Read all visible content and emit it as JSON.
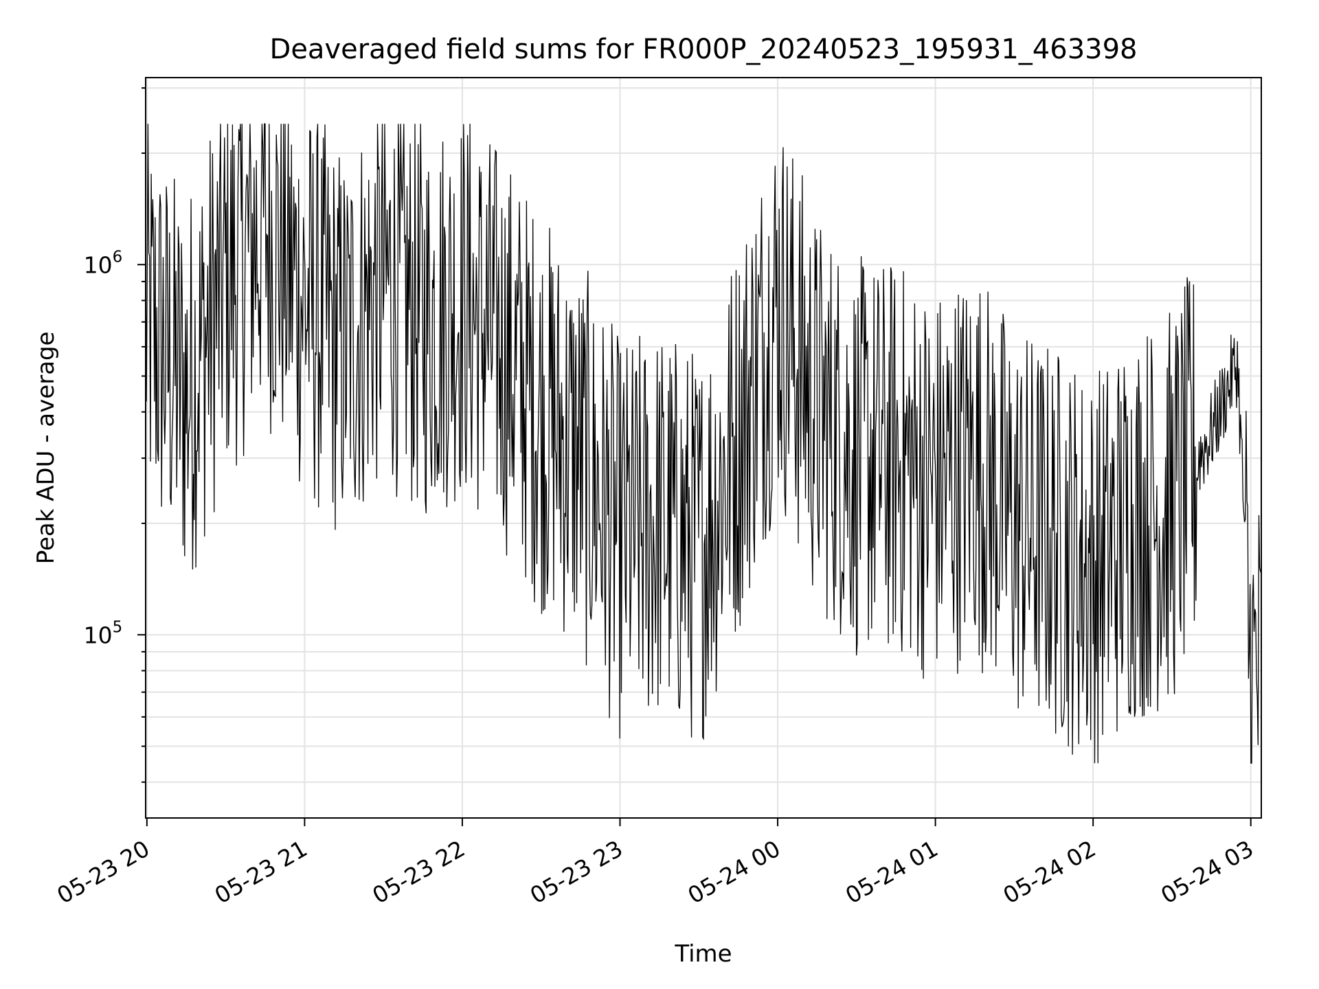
{
  "chart_data": {
    "type": "line",
    "title": "Deaveraged field sums for FR000P_20240523_195931_463398",
    "xlabel": "Time",
    "ylabel": "Peak ADU - average",
    "yscale": "log",
    "grid": true,
    "line_color": "#000000",
    "xlim": [
      "2024-05-23 19:59:31",
      "2024-05-24 03:04:00"
    ],
    "ylim": [
      32000,
      3200000
    ],
    "xticks": [
      {
        "label": "05-23 20",
        "time": "2024-05-23 20:00"
      },
      {
        "label": "05-23 21",
        "time": "2024-05-23 21:00"
      },
      {
        "label": "05-23 22",
        "time": "2024-05-23 22:00"
      },
      {
        "label": "05-23 23",
        "time": "2024-05-23 23:00"
      },
      {
        "label": "05-24 00",
        "time": "2024-05-24 00:00"
      },
      {
        "label": "05-24 01",
        "time": "2024-05-24 01:00"
      },
      {
        "label": "05-24 02",
        "time": "2024-05-24 02:00"
      },
      {
        "label": "05-24 03",
        "time": "2024-05-24 03:00"
      }
    ],
    "yticks": [
      {
        "base": "10",
        "exp": "5",
        "value": 100000
      },
      {
        "base": "10",
        "exp": "6",
        "value": 1000000
      }
    ],
    "series": [
      {
        "x": [
          "2024-05-23 20:00",
          "2024-05-23 20:15",
          "2024-05-23 20:30",
          "2024-05-23 20:45",
          "2024-05-23 21:00",
          "2024-05-23 21:15",
          "2024-05-23 21:30",
          "2024-05-23 21:45",
          "2024-05-23 22:00",
          "2024-05-23 22:15",
          "2024-05-23 22:30",
          "2024-05-23 22:45",
          "2024-05-23 23:00",
          "2024-05-23 23:15",
          "2024-05-23 23:30",
          "2024-05-23 23:45",
          "2024-05-24 00:00",
          "2024-05-24 00:15",
          "2024-05-24 00:30",
          "2024-05-24 00:45",
          "2024-05-24 01:00",
          "2024-05-24 01:15",
          "2024-05-24 01:30",
          "2024-05-24 01:45",
          "2024-05-24 02:00",
          "2024-05-24 02:15",
          "2024-05-24 02:30",
          "2024-05-24 02:45",
          "2024-05-24 02:55",
          "2024-05-24 03:00"
        ],
        "values": [
          700000,
          450000,
          900000,
          1300000,
          800000,
          600000,
          900000,
          700000,
          800000,
          600000,
          400000,
          300000,
          180000,
          200000,
          170000,
          350000,
          800000,
          400000,
          300000,
          300000,
          250000,
          300000,
          200000,
          180000,
          150000,
          200000,
          220000,
          350000,
          550000,
          75000
        ]
      }
    ]
  }
}
